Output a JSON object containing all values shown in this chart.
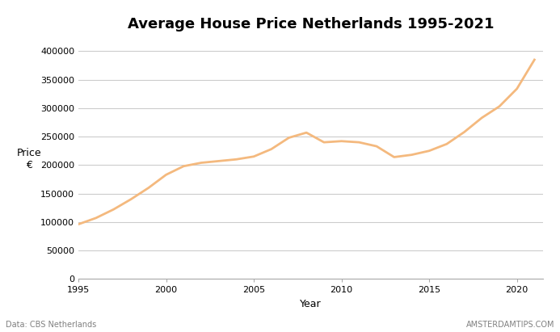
{
  "title": "Average House Price Netherlands 1995-2021",
  "xlabel": "Year",
  "ylabel": "Price\n€",
  "years": [
    1995,
    1996,
    1997,
    1998,
    1999,
    2000,
    2001,
    2002,
    2003,
    2004,
    2005,
    2006,
    2007,
    2008,
    2009,
    2010,
    2011,
    2012,
    2013,
    2014,
    2015,
    2016,
    2017,
    2018,
    2019,
    2020,
    2021
  ],
  "prices": [
    96000,
    107000,
    122000,
    140000,
    160000,
    183000,
    198000,
    204000,
    207000,
    210000,
    215000,
    228000,
    248000,
    257000,
    240000,
    242000,
    240000,
    233000,
    214000,
    218000,
    225000,
    237000,
    258000,
    283000,
    303000,
    334000,
    385000
  ],
  "line_color": "#f4b97e",
  "background_color": "#ffffff",
  "ylim": [
    0,
    420000
  ],
  "yticks": [
    0,
    50000,
    100000,
    150000,
    200000,
    250000,
    300000,
    350000,
    400000
  ],
  "xticks": [
    1995,
    2000,
    2005,
    2010,
    2015,
    2020
  ],
  "grid_color": "#cccccc",
  "footer_left": "Data: CBS Netherlands",
  "footer_right": "AMSTERDAMTIPS.COM",
  "title_fontsize": 13,
  "axis_label_fontsize": 9,
  "tick_fontsize": 8,
  "footer_fontsize": 7,
  "line_width": 2.0
}
